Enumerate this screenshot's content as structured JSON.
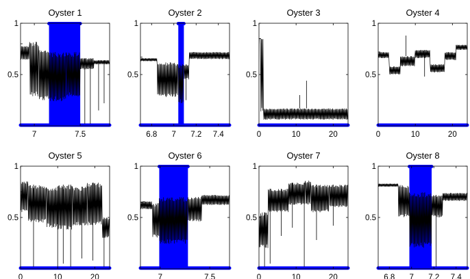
{
  "colors": {
    "signal": "#000000",
    "highlight": "#0000ff",
    "frame": "#000000",
    "background": "#ffffff"
  },
  "chart_data": [
    {
      "type": "line",
      "title": "Oyster 1",
      "xlim": [
        6.85,
        7.82
      ],
      "ylim": [
        0,
        1
      ],
      "xticks": [
        7,
        7.5
      ],
      "xtick_labels": [
        "7",
        "7.5"
      ],
      "yticks": [
        0.5,
        1
      ],
      "ytick_labels": [
        "0.5",
        "1"
      ],
      "highlight_x": [
        7.16,
        7.5
      ],
      "base_y": 0.985,
      "start_y": 0.8,
      "end_y": 0.62,
      "segments": [
        {
          "x0": 6.85,
          "x1": 6.95,
          "hi": 0.78,
          "lo": 0.64
        },
        {
          "x0": 6.95,
          "x1": 7.05,
          "hi": 0.82,
          "lo": 0.28
        },
        {
          "x0": 7.05,
          "x1": 7.16,
          "hi": 0.74,
          "lo": 0.24
        },
        {
          "x0": 7.16,
          "x1": 7.35,
          "hi": 0.72,
          "lo": 0.24
        },
        {
          "x0": 7.35,
          "x1": 7.5,
          "hi": 0.72,
          "lo": 0.28
        },
        {
          "x0": 7.5,
          "x1": 7.65,
          "hi": 0.66,
          "lo": 0.55
        },
        {
          "x0": 7.65,
          "x1": 7.82,
          "hi": 0.64,
          "lo": 0.6
        }
      ],
      "drops": [
        {
          "x": 7.55,
          "y": 0.02
        },
        {
          "x": 7.61,
          "y": 0.02
        },
        {
          "x": 7.7,
          "y": 0.15
        },
        {
          "x": 7.76,
          "y": 0.22
        }
      ]
    },
    {
      "type": "line",
      "title": "Oyster 2",
      "xlim": [
        6.7,
        7.5
      ],
      "ylim": [
        0,
        1
      ],
      "xticks": [
        6.8,
        7,
        7.2,
        7.4
      ],
      "xtick_labels": [
        "6.8",
        "7",
        "7.2",
        "7.4"
      ],
      "yticks": [
        0.5,
        1
      ],
      "ytick_labels": [
        "0.5",
        "1"
      ],
      "highlight_x": [
        7.04,
        7.09
      ],
      "base_y": 0.985,
      "start_y": 0.67,
      "end_y": 0.72,
      "segments": [
        {
          "x0": 6.7,
          "x1": 6.85,
          "hi": 0.66,
          "lo": 0.63
        },
        {
          "x0": 6.85,
          "x1": 7.04,
          "hi": 0.62,
          "lo": 0.28
        },
        {
          "x0": 7.04,
          "x1": 7.09,
          "hi": 0.6,
          "lo": 0.22
        },
        {
          "x0": 7.09,
          "x1": 7.14,
          "hi": 0.6,
          "lo": 0.45
        },
        {
          "x0": 7.14,
          "x1": 7.5,
          "hi": 0.72,
          "lo": 0.65
        }
      ],
      "drops": [
        {
          "x": 7.11,
          "y": 0.25
        }
      ]
    },
    {
      "type": "line",
      "title": "Oyster 3",
      "xlim": [
        0,
        24
      ],
      "ylim": [
        0,
        1
      ],
      "xticks": [
        0,
        10,
        20
      ],
      "xtick_labels": [
        "0",
        "10",
        "20"
      ],
      "yticks": [
        0.5,
        1
      ],
      "ytick_labels": [
        "0.5",
        "1"
      ],
      "highlight_x": [],
      "base_y": 0.985,
      "start_y": 0.85,
      "end_y": 0.1,
      "segments": [
        {
          "x0": 0,
          "x1": 0.4,
          "hi": 0.85,
          "lo": 0.85
        },
        {
          "x0": 0.4,
          "x1": 1.2,
          "hi": 0.85,
          "lo": 0.12
        },
        {
          "x0": 1.2,
          "x1": 24,
          "hi": 0.17,
          "lo": 0.06
        }
      ],
      "drops": [
        {
          "x": 12.8,
          "y": 0.44
        },
        {
          "x": 11,
          "y": 0.3
        }
      ]
    },
    {
      "type": "line",
      "title": "Oyster 4",
      "xlim": [
        0,
        24
      ],
      "ylim": [
        0,
        1
      ],
      "xticks": [
        0,
        10,
        20
      ],
      "xtick_labels": [
        "0",
        "10",
        "20"
      ],
      "yticks": [
        0.5,
        1
      ],
      "ytick_labels": [
        "0.5",
        "1"
      ],
      "highlight_x": [],
      "base_y": 0.985,
      "start_y": 0.72,
      "end_y": 0.78,
      "segments": [
        {
          "x0": 0,
          "x1": 3,
          "hi": 0.72,
          "lo": 0.66
        },
        {
          "x0": 3,
          "x1": 6,
          "hi": 0.58,
          "lo": 0.5
        },
        {
          "x0": 6,
          "x1": 10,
          "hi": 0.68,
          "lo": 0.58
        },
        {
          "x0": 10,
          "x1": 14,
          "hi": 0.74,
          "lo": 0.66
        },
        {
          "x0": 14,
          "x1": 18,
          "hi": 0.6,
          "lo": 0.52
        },
        {
          "x0": 18,
          "x1": 21,
          "hi": 0.72,
          "lo": 0.64
        },
        {
          "x0": 21,
          "x1": 24,
          "hi": 0.79,
          "lo": 0.74
        }
      ],
      "drops": [
        {
          "x": 7.5,
          "y": 0.88
        },
        {
          "x": 12.5,
          "y": 0.48
        }
      ]
    },
    {
      "type": "line",
      "title": "Oyster 5",
      "xlim": [
        0,
        24
      ],
      "ylim": [
        0,
        1
      ],
      "xticks": [
        0,
        10,
        20
      ],
      "xtick_labels": [
        "0",
        "10",
        "20"
      ],
      "yticks": [
        0.5,
        1
      ],
      "ytick_labels": [
        "0.5",
        "1"
      ],
      "highlight_x": [],
      "base_y": 0.985,
      "start_y": 0.75,
      "end_y": 0.4,
      "segments": [
        {
          "x0": 0,
          "x1": 2,
          "hi": 0.86,
          "lo": 0.55
        },
        {
          "x0": 2,
          "x1": 7,
          "hi": 0.82,
          "lo": 0.45
        },
        {
          "x0": 7,
          "x1": 10,
          "hi": 0.8,
          "lo": 0.4
        },
        {
          "x0": 10,
          "x1": 14,
          "hi": 0.82,
          "lo": 0.38
        },
        {
          "x0": 14,
          "x1": 18,
          "hi": 0.8,
          "lo": 0.42
        },
        {
          "x0": 18,
          "x1": 22,
          "hi": 0.84,
          "lo": 0.42
        },
        {
          "x0": 22,
          "x1": 24,
          "hi": 0.5,
          "lo": 0.3
        }
      ],
      "drops": [
        {
          "x": 3.5,
          "y": 0.02
        },
        {
          "x": 10,
          "y": 0.02
        },
        {
          "x": 11.5,
          "y": 0.05
        },
        {
          "x": 13.5,
          "y": 0.02
        },
        {
          "x": 16.5,
          "y": 0.1
        },
        {
          "x": 19.5,
          "y": 0.08
        },
        {
          "x": 22.5,
          "y": 0.02
        }
      ]
    },
    {
      "type": "line",
      "title": "Oyster 6",
      "xlim": [
        6.8,
        7.7
      ],
      "ylim": [
        0,
        1
      ],
      "xticks": [
        7,
        7.5
      ],
      "xtick_labels": [
        "7",
        "7.5"
      ],
      "yticks": [
        0.5,
        1
      ],
      "ytick_labels": [
        "0.5",
        "1"
      ],
      "highlight_x": [
        6.99,
        7.28
      ],
      "base_y": 0.985,
      "start_y": 0.65,
      "end_y": 0.72,
      "segments": [
        {
          "x0": 6.8,
          "x1": 6.92,
          "hi": 0.66,
          "lo": 0.58
        },
        {
          "x0": 6.92,
          "x1": 6.99,
          "hi": 0.64,
          "lo": 0.3
        },
        {
          "x0": 6.99,
          "x1": 7.28,
          "hi": 0.7,
          "lo": 0.24
        },
        {
          "x0": 7.28,
          "x1": 7.42,
          "hi": 0.7,
          "lo": 0.46
        },
        {
          "x0": 7.42,
          "x1": 7.7,
          "hi": 0.72,
          "lo": 0.62
        }
      ],
      "drops": []
    },
    {
      "type": "line",
      "title": "Oyster 7",
      "xlim": [
        0,
        24
      ],
      "ylim": [
        0,
        1
      ],
      "xticks": [
        0,
        10,
        20
      ],
      "xtick_labels": [
        "0",
        "10",
        "20"
      ],
      "yticks": [
        0.5,
        1
      ],
      "ytick_labels": [
        "0.5",
        "1"
      ],
      "highlight_x": [],
      "base_y": 0.985,
      "start_y": 0.35,
      "end_y": 0.8,
      "segments": [
        {
          "x0": 0,
          "x1": 2.5,
          "hi": 0.55,
          "lo": 0.2
        },
        {
          "x0": 2.5,
          "x1": 8,
          "hi": 0.78,
          "lo": 0.55
        },
        {
          "x0": 8,
          "x1": 12.5,
          "hi": 0.84,
          "lo": 0.62
        },
        {
          "x0": 12.5,
          "x1": 14,
          "hi": 0.86,
          "lo": 0.62
        },
        {
          "x0": 14,
          "x1": 19,
          "hi": 0.82,
          "lo": 0.55
        },
        {
          "x0": 19,
          "x1": 24,
          "hi": 0.82,
          "lo": 0.6
        }
      ],
      "drops": [
        {
          "x": 1.5,
          "y": 0.02
        },
        {
          "x": 3,
          "y": 0.05
        },
        {
          "x": 6,
          "y": 0.32
        },
        {
          "x": 9,
          "y": 0.4
        },
        {
          "x": 12.2,
          "y": 0.02
        },
        {
          "x": 15.5,
          "y": 0.28
        },
        {
          "x": 20,
          "y": 0.42
        }
      ]
    },
    {
      "type": "line",
      "title": "Oyster 8",
      "xlim": [
        6.7,
        7.5
      ],
      "ylim": [
        0,
        1
      ],
      "xticks": [
        6.8,
        7,
        7.2,
        7.4
      ],
      "xtick_labels": [
        "6.8",
        "7",
        "7.2",
        "7.4"
      ],
      "yticks": [
        0.5,
        1
      ],
      "ytick_labels": [
        "0.5",
        "1"
      ],
      "highlight_x": [
        6.98,
        7.18
      ],
      "base_y": 0.985,
      "start_y": 0.82,
      "end_y": 0.72,
      "segments": [
        {
          "x0": 6.7,
          "x1": 6.88,
          "hi": 0.83,
          "lo": 0.8
        },
        {
          "x0": 6.88,
          "x1": 6.98,
          "hi": 0.82,
          "lo": 0.5
        },
        {
          "x0": 6.98,
          "x1": 7.18,
          "hi": 0.75,
          "lo": 0.2
        },
        {
          "x0": 7.18,
          "x1": 7.28,
          "hi": 0.72,
          "lo": 0.5
        },
        {
          "x0": 7.28,
          "x1": 7.5,
          "hi": 0.74,
          "lo": 0.66
        }
      ],
      "drops": [
        {
          "x": 7.22,
          "y": 0.02
        }
      ]
    }
  ]
}
